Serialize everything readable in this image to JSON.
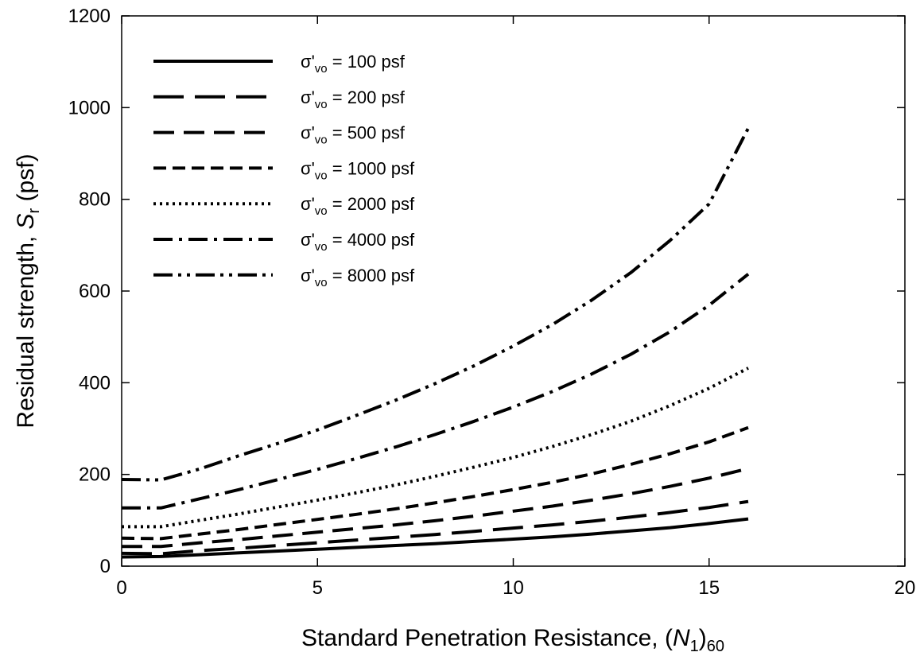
{
  "chart_data": {
    "type": "line",
    "xlabel": "Standard Penetration Resistance, (N1)60",
    "xlabel_parts": [
      "Standard Penetration Resistance, (",
      "N",
      "1",
      ")",
      "60"
    ],
    "ylabel": "Residual strength, Sr (psf)",
    "ylabel_parts": [
      "Residual strength, ",
      "S",
      "r",
      " (psf)"
    ],
    "xlim": [
      0,
      20
    ],
    "ylim": [
      0,
      1200
    ],
    "xticks": [
      0,
      5,
      10,
      15,
      20
    ],
    "yticks": [
      0,
      200,
      400,
      600,
      800,
      1000,
      1200
    ],
    "grid": false,
    "legend_position": "top-left",
    "line_color": "#000000",
    "x": [
      0,
      1,
      2,
      3,
      4,
      5,
      6,
      7,
      8,
      9,
      10,
      11,
      12,
      13,
      14,
      15,
      16
    ],
    "series": [
      {
        "name": "σ'vo = 100 psf",
        "label_parts": [
          "σ'",
          "vo",
          " = 100 psf"
        ],
        "style": "solid",
        "values": [
          20,
          21,
          25,
          29,
          33,
          37,
          41,
          45,
          49,
          54,
          59,
          64,
          70,
          77,
          84,
          93,
          103
        ]
      },
      {
        "name": "σ'vo = 200 psf",
        "label_parts": [
          "σ'",
          "vo",
          " = 200 psf"
        ],
        "style": "long-dash",
        "values": [
          28,
          27,
          34,
          39,
          45,
          51,
          57,
          63,
          69,
          76,
          83,
          90,
          98,
          107,
          117,
          128,
          141
        ]
      },
      {
        "name": "σ'vo = 500 psf",
        "label_parts": [
          "σ'",
          "vo",
          " = 500 psf"
        ],
        "style": "dash",
        "values": [
          43,
          43,
          51,
          58,
          66,
          74,
          82,
          90,
          99,
          109,
          120,
          131,
          144,
          158,
          174,
          192,
          213
        ]
      },
      {
        "name": "σ'vo = 1000 psf",
        "label_parts": [
          "σ'",
          "vo",
          " = 1000 psf"
        ],
        "style": "short-dash",
        "values": [
          61,
          60,
          70,
          80,
          91,
          102,
          113,
          125,
          138,
          152,
          167,
          183,
          201,
          222,
          245,
          271,
          302
        ]
      },
      {
        "name": "σ'vo = 2000 psf",
        "label_parts": [
          "σ'",
          "vo",
          " = 2000 psf"
        ],
        "style": "dotted",
        "values": [
          86,
          86,
          100,
          114,
          129,
          144,
          160,
          177,
          196,
          216,
          237,
          261,
          287,
          316,
          350,
          388,
          432
        ]
      },
      {
        "name": "σ'vo = 4000 psf",
        "label_parts": [
          "σ'",
          "vo",
          " = 4000 psf"
        ],
        "style": "dash-dot",
        "values": [
          127,
          127,
          147,
          167,
          189,
          211,
          235,
          260,
          287,
          316,
          347,
          381,
          419,
          462,
          511,
          569,
          637
        ]
      },
      {
        "name": "σ'vo = 8000 psf",
        "label_parts": [
          "σ'",
          "vo",
          " = 8000 psf"
        ],
        "style": "dash-dot-dot",
        "values": [
          189,
          188,
          212,
          241,
          268,
          297,
          329,
          362,
          398,
          437,
          480,
          527,
          580,
          640,
          710,
          790,
          955
        ]
      }
    ]
  }
}
